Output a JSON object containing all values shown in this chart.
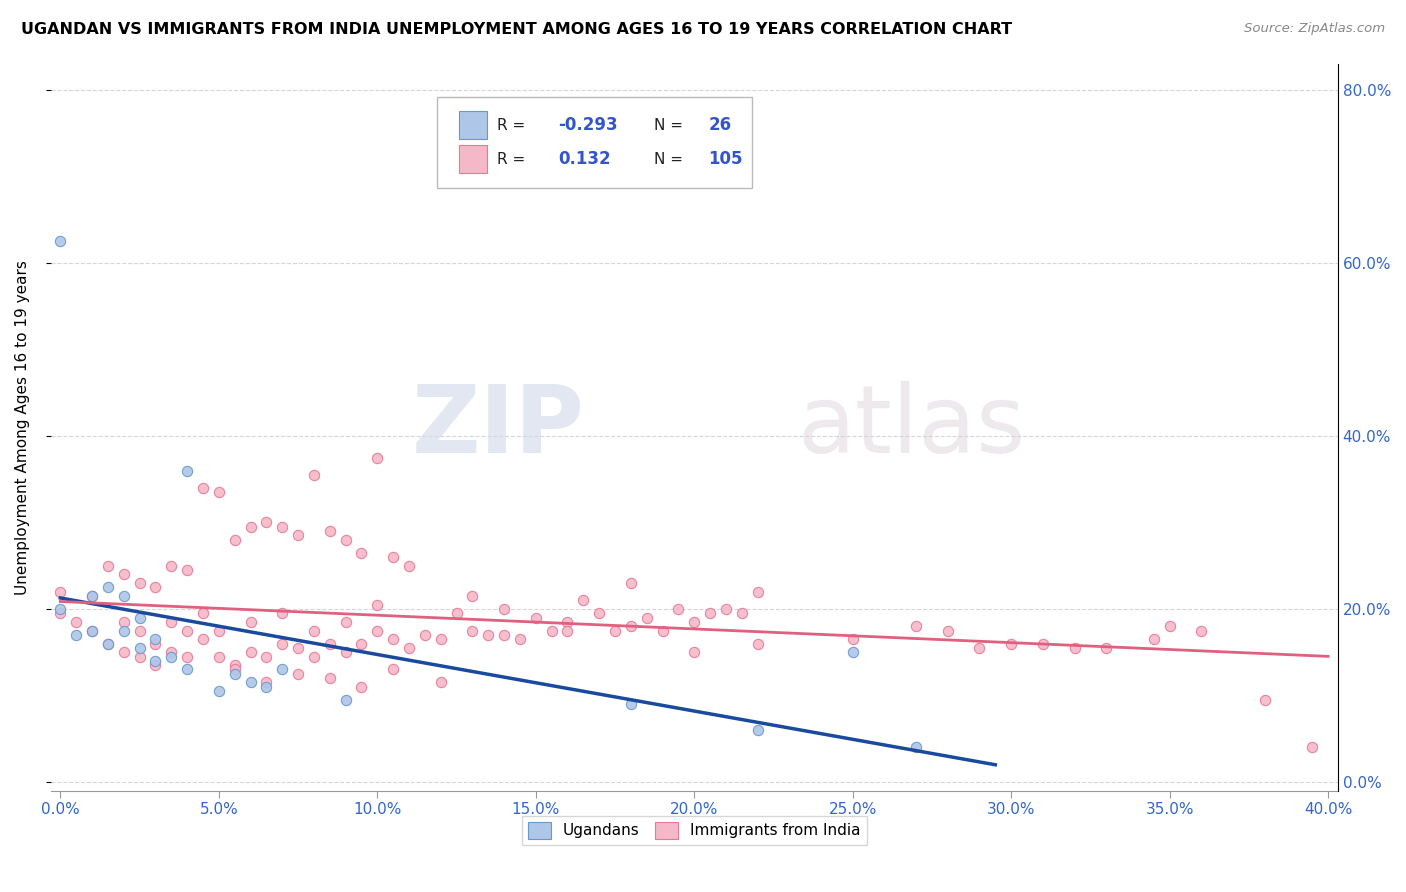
{
  "title": "UGANDAN VS IMMIGRANTS FROM INDIA UNEMPLOYMENT AMONG AGES 16 TO 19 YEARS CORRELATION CHART",
  "source": "Source: ZipAtlas.com",
  "ylabel": "Unemployment Among Ages 16 to 19 years",
  "blue_color": "#aec6e8",
  "blue_edge_color": "#6699cc",
  "pink_color": "#f4b8c8",
  "pink_edge_color": "#e87898",
  "blue_line_color": "#1a4a9e",
  "pink_line_color": "#e06080",
  "legend_blue_r": "-0.293",
  "legend_blue_n": "26",
  "legend_pink_r": "0.132",
  "legend_pink_n": "105",
  "xlim": [
    -0.003,
    0.403
  ],
  "ylim": [
    -0.01,
    0.83
  ],
  "yticks": [
    0.0,
    0.2,
    0.4,
    0.6,
    0.8
  ],
  "xticks": [
    0.0,
    0.05,
    0.1,
    0.15,
    0.2,
    0.25,
    0.3,
    0.35,
    0.4
  ],
  "blue_x": [
    0.0,
    0.0,
    0.005,
    0.01,
    0.01,
    0.015,
    0.015,
    0.02,
    0.02,
    0.025,
    0.025,
    0.03,
    0.03,
    0.035,
    0.04,
    0.04,
    0.05,
    0.055,
    0.06,
    0.065,
    0.07,
    0.09,
    0.18,
    0.22,
    0.25,
    0.27
  ],
  "blue_y": [
    0.2,
    0.625,
    0.17,
    0.175,
    0.215,
    0.16,
    0.225,
    0.175,
    0.215,
    0.155,
    0.19,
    0.14,
    0.165,
    0.145,
    0.36,
    0.13,
    0.105,
    0.125,
    0.115,
    0.11,
    0.13,
    0.095,
    0.09,
    0.06,
    0.15,
    0.04
  ],
  "india_x": [
    0.0,
    0.0,
    0.005,
    0.01,
    0.01,
    0.015,
    0.02,
    0.02,
    0.025,
    0.025,
    0.03,
    0.03,
    0.035,
    0.035,
    0.04,
    0.04,
    0.045,
    0.045,
    0.05,
    0.05,
    0.055,
    0.06,
    0.06,
    0.065,
    0.07,
    0.07,
    0.075,
    0.08,
    0.08,
    0.085,
    0.09,
    0.09,
    0.095,
    0.1,
    0.1,
    0.105,
    0.11,
    0.115,
    0.12,
    0.125,
    0.13,
    0.13,
    0.135,
    0.14,
    0.145,
    0.15,
    0.155,
    0.16,
    0.165,
    0.17,
    0.175,
    0.18,
    0.185,
    0.19,
    0.195,
    0.2,
    0.205,
    0.21,
    0.215,
    0.22,
    0.015,
    0.02,
    0.025,
    0.03,
    0.035,
    0.04,
    0.045,
    0.05,
    0.055,
    0.06,
    0.065,
    0.07,
    0.075,
    0.08,
    0.085,
    0.09,
    0.095,
    0.1,
    0.105,
    0.11,
    0.055,
    0.065,
    0.075,
    0.085,
    0.095,
    0.105,
    0.12,
    0.14,
    0.16,
    0.18,
    0.2,
    0.22,
    0.25,
    0.28,
    0.3,
    0.32,
    0.35,
    0.36,
    0.38,
    0.395,
    0.27,
    0.29,
    0.31,
    0.33,
    0.345
  ],
  "india_y": [
    0.22,
    0.195,
    0.185,
    0.175,
    0.215,
    0.16,
    0.15,
    0.185,
    0.145,
    0.175,
    0.135,
    0.16,
    0.15,
    0.185,
    0.145,
    0.175,
    0.165,
    0.195,
    0.145,
    0.175,
    0.135,
    0.15,
    0.185,
    0.145,
    0.16,
    0.195,
    0.155,
    0.145,
    0.175,
    0.16,
    0.15,
    0.185,
    0.16,
    0.175,
    0.205,
    0.165,
    0.155,
    0.17,
    0.165,
    0.195,
    0.175,
    0.215,
    0.17,
    0.2,
    0.165,
    0.19,
    0.175,
    0.185,
    0.21,
    0.195,
    0.175,
    0.23,
    0.19,
    0.175,
    0.2,
    0.185,
    0.195,
    0.2,
    0.195,
    0.22,
    0.25,
    0.24,
    0.23,
    0.225,
    0.25,
    0.245,
    0.34,
    0.335,
    0.28,
    0.295,
    0.3,
    0.295,
    0.285,
    0.355,
    0.29,
    0.28,
    0.265,
    0.375,
    0.26,
    0.25,
    0.13,
    0.115,
    0.125,
    0.12,
    0.11,
    0.13,
    0.115,
    0.17,
    0.175,
    0.18,
    0.15,
    0.16,
    0.165,
    0.175,
    0.16,
    0.155,
    0.18,
    0.175,
    0.095,
    0.04,
    0.18,
    0.155,
    0.16,
    0.155,
    0.165
  ],
  "watermark_zip": "ZIP",
  "watermark_atlas": "atlas"
}
